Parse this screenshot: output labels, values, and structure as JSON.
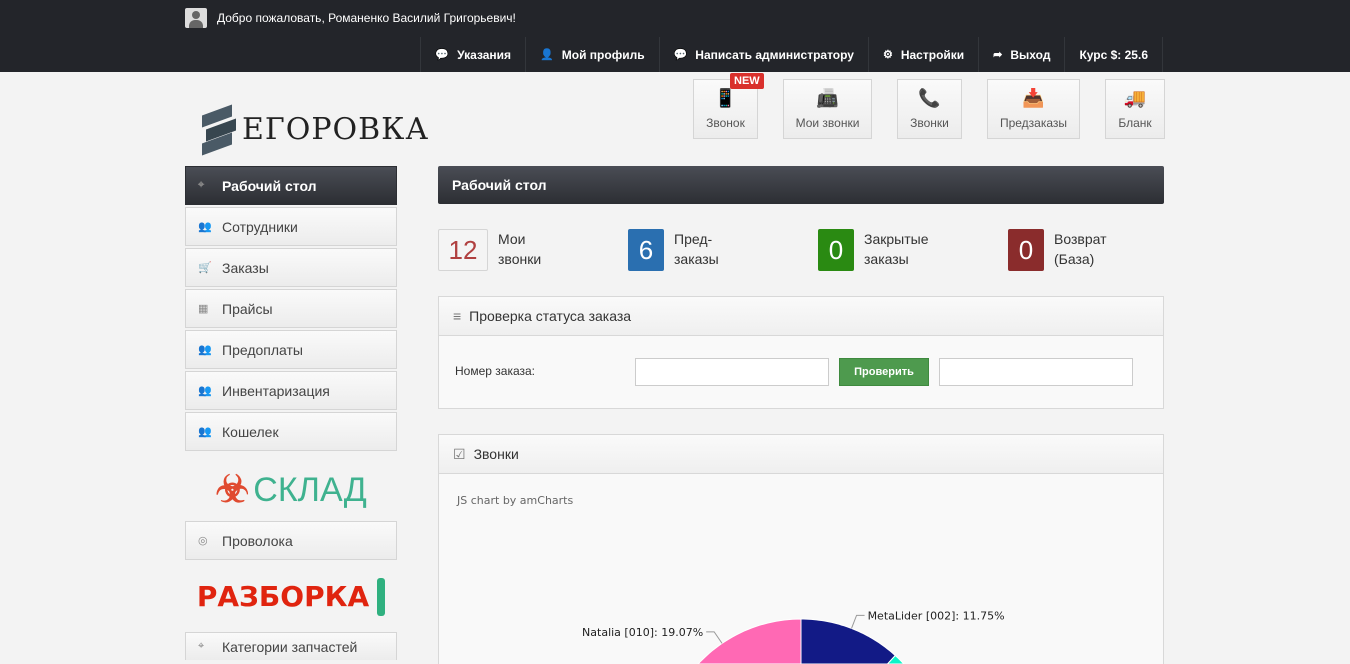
{
  "topbar": {
    "welcome": "Добро пожаловать, Романенко Василий Григорьевич!",
    "nav": [
      {
        "icon": "comments-icon",
        "label": "Указания"
      },
      {
        "icon": "user-icon",
        "label": "Мой профиль"
      },
      {
        "icon": "comments-icon",
        "label": "Написать администратору"
      },
      {
        "icon": "gear-icon",
        "label": "Настройки"
      },
      {
        "icon": "share-icon",
        "label": "Выход"
      }
    ],
    "rate": "Курс $: 25.6"
  },
  "logo": "ЕГОРОВКА",
  "quick": [
    {
      "label": "Звонок",
      "icon": "mobile-phone-icon",
      "badge": "NEW"
    },
    {
      "label": "Мои звонки",
      "icon": "fax-icon"
    },
    {
      "label": "Звонки",
      "icon": "phone-icon"
    },
    {
      "label": "Предзаказы",
      "icon": "inbox-icon"
    },
    {
      "label": "Бланк",
      "icon": "truck-icon"
    }
  ],
  "sidebar": {
    "items": [
      {
        "label": "Рабочий стол",
        "icon": "dashboard-icon",
        "active": true
      },
      {
        "label": "Сотрудники",
        "icon": "users-icon"
      },
      {
        "label": "Заказы",
        "icon": "cart-icon"
      },
      {
        "label": "Прайсы",
        "icon": "calculator-icon"
      },
      {
        "label": "Предоплаты",
        "icon": "users-icon"
      },
      {
        "label": "Инвентаризация",
        "icon": "users-icon"
      },
      {
        "label": "Кошелек",
        "icon": "users-icon"
      }
    ],
    "brand1": "СКЛАД",
    "item2": "Проволока",
    "brand2": "РАЗБОРКА",
    "item3": "Категории запчастей"
  },
  "main": {
    "title": "Рабочий стол",
    "stats": [
      {
        "value": "12",
        "l1": "Мои",
        "l2": "звонки",
        "color": "#f4f4f4"
      },
      {
        "value": "6",
        "l1": "Пред-",
        "l2": "заказы",
        "color": "#2a6fb0"
      },
      {
        "value": "0",
        "l1": "Закрытые",
        "l2": "заказы",
        "color": "#2a8a12"
      },
      {
        "value": "0",
        "l1": "Возврат",
        "l2": "(База)",
        "color": "#8a2c2c"
      }
    ],
    "status_panel": {
      "title": "Проверка статуса заказа",
      "label": "Номер заказа:",
      "button": "Проверить",
      "order_value": "",
      "result_value": ""
    },
    "calls_panel": {
      "title": "Звонки",
      "credit": "JS chart by amCharts"
    }
  },
  "chart_data": {
    "type": "pie",
    "slices": [
      {
        "name": "MetaLider [002]",
        "percent": 11.75,
        "label": "MetaLider [002]: 11.75%",
        "color": "#121a86"
      },
      {
        "name": "Natalia [010]",
        "percent": 19.07,
        "label": "Natalia [010]: 19.07%",
        "color": "#ff69b4"
      }
    ],
    "other_visible_color": "#0cf5c8"
  }
}
